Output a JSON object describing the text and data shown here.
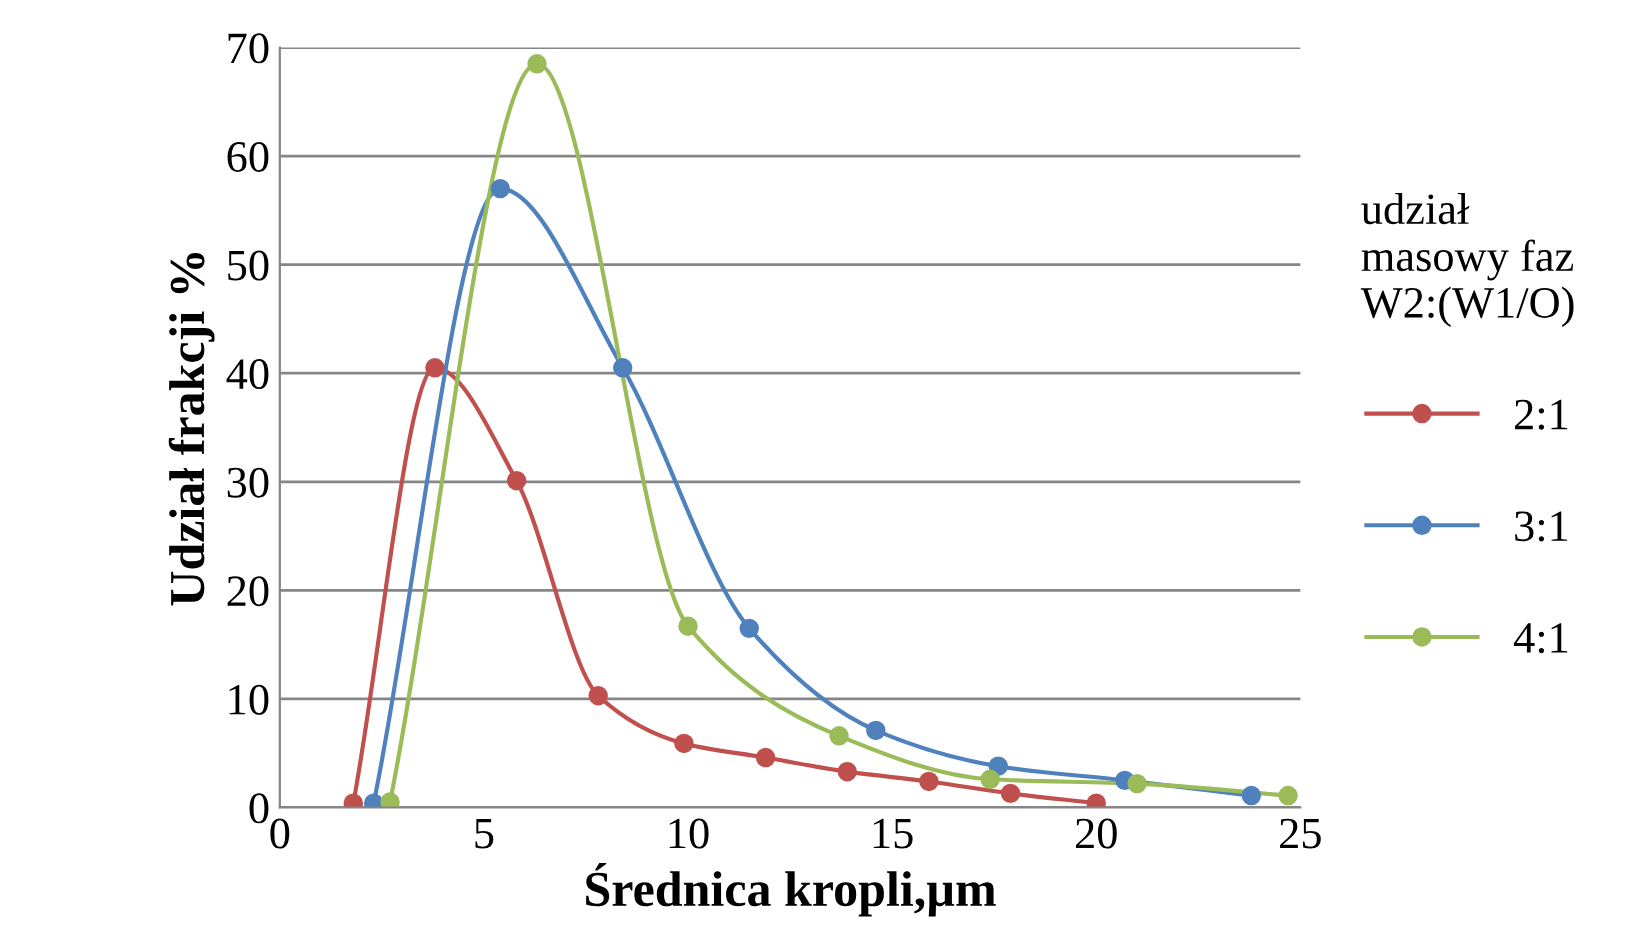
{
  "chart_data": {
    "type": "line",
    "xlabel": "Średnica kropli,µm",
    "ylabel": "Udział frakcji %",
    "legend_title": "udział\nmasowy faz\nW2:(W1/O)",
    "series": [
      {
        "name": "2:1",
        "color": "#c0504d",
        "x": [
          1.8,
          3.8,
          5.8,
          7.8,
          9.9,
          11.9,
          13.9,
          15.9,
          17.9,
          20.0
        ],
        "values": [
          0.4,
          40.5,
          30.1,
          10.3,
          5.9,
          4.6,
          3.3,
          2.4,
          1.3,
          0.4
        ]
      },
      {
        "name": "3:1",
        "color": "#4f81bd",
        "x": [
          2.3,
          5.4,
          8.4,
          11.5,
          14.6,
          17.6,
          20.7,
          23.8
        ],
        "values": [
          0.4,
          57.0,
          40.5,
          16.5,
          7.1,
          3.8,
          2.5,
          1.1
        ]
      },
      {
        "name": "4:1",
        "color": "#9bbb59",
        "x": [
          2.7,
          6.3,
          10.0,
          13.7,
          17.4,
          21.0,
          24.7
        ],
        "values": [
          0.5,
          68.5,
          16.7,
          6.6,
          2.6,
          2.2,
          1.1
        ]
      }
    ],
    "xlim": [
      0,
      25
    ],
    "xticks": [
      0,
      5,
      10,
      15,
      20,
      25
    ],
    "ylim": [
      0,
      70
    ],
    "yticks": [
      0,
      10,
      20,
      30,
      40,
      50,
      60,
      70
    ],
    "grid": "y",
    "legend": "right",
    "marker": "circle",
    "line_style": "solid"
  }
}
